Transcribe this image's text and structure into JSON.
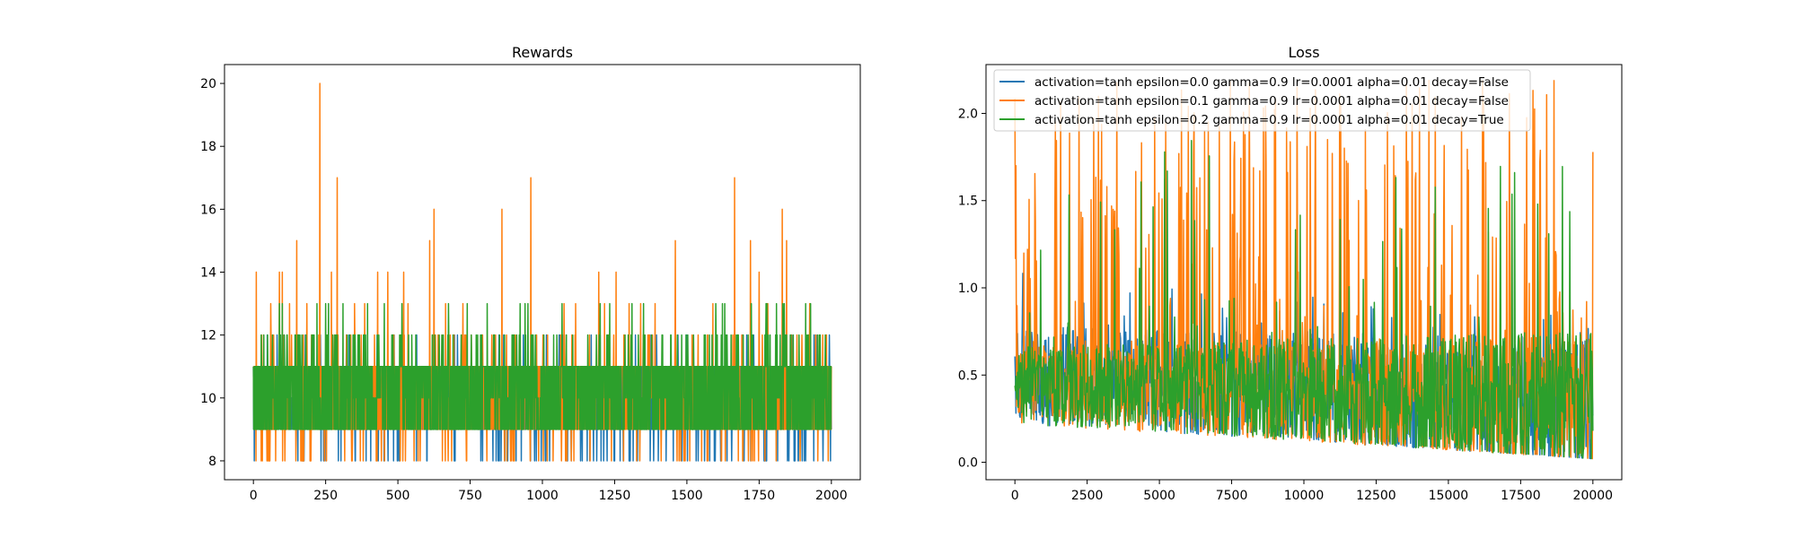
{
  "chart_data": [
    {
      "type": "line",
      "title": "Rewards",
      "xlabel": "",
      "ylabel": "",
      "xlim": [
        -100,
        2100
      ],
      "ylim": [
        7.4,
        20.6
      ],
      "x_ticks": [
        "0",
        "250",
        "500",
        "750",
        "1000",
        "1250",
        "1500",
        "1750",
        "2000"
      ],
      "y_ticks": [
        "8",
        "10",
        "12",
        "14",
        "16",
        "18",
        "20"
      ],
      "grid": false,
      "legend": null,
      "series": [
        {
          "color": "#1f77b4",
          "x_range": [
            0,
            2000
          ],
          "typical_range": [
            9,
            11
          ],
          "min": 8,
          "max": 12
        },
        {
          "color": "#ff7f0e",
          "x_range": [
            0,
            2000
          ],
          "typical_range": [
            9,
            11
          ],
          "min": 8,
          "max": 20,
          "peaks": [
            [
              10,
              14
            ],
            [
              60,
              13
            ],
            [
              90,
              14
            ],
            [
              100,
              14
            ],
            [
              125,
              13
            ],
            [
              150,
              15
            ],
            [
              185,
              13
            ],
            [
              230,
              20
            ],
            [
              270,
              14
            ],
            [
              290,
              17
            ],
            [
              350,
              13
            ],
            [
              385,
              13
            ],
            [
              430,
              14
            ],
            [
              465,
              14
            ],
            [
              520,
              14
            ],
            [
              535,
              13
            ],
            [
              610,
              15
            ],
            [
              625,
              16
            ],
            [
              665,
              13
            ],
            [
              725,
              13
            ],
            [
              860,
              16
            ],
            [
              960,
              17
            ],
            [
              1075,
              13
            ],
            [
              1115,
              13
            ],
            [
              1195,
              14
            ],
            [
              1215,
              13
            ],
            [
              1255,
              14
            ],
            [
              1300,
              13
            ],
            [
              1340,
              13
            ],
            [
              1390,
              13
            ],
            [
              1460,
              15
            ],
            [
              1590,
              13
            ],
            [
              1665,
              17
            ],
            [
              1720,
              15
            ],
            [
              1750,
              14
            ],
            [
              1780,
              13
            ],
            [
              1830,
              16
            ],
            [
              1845,
              15
            ],
            [
              1925,
              13
            ],
            [
              1970,
              12
            ]
          ]
        },
        {
          "color": "#2ca02c",
          "x_range": [
            0,
            2000
          ],
          "typical_range": [
            9,
            11
          ],
          "min": 9,
          "max": 13
        }
      ]
    },
    {
      "type": "line",
      "title": "Loss",
      "xlabel": "",
      "ylabel": "",
      "xlim": [
        -1000,
        21000
      ],
      "ylim": [
        -0.1,
        2.28
      ],
      "x_ticks": [
        "0",
        "2500",
        "5000",
        "7500",
        "10000",
        "12500",
        "15000",
        "17500",
        "20000"
      ],
      "y_ticks": [
        "0.0",
        "0.5",
        "1.0",
        "1.5",
        "2.0"
      ],
      "grid": false,
      "legend": "upper left",
      "series": [
        {
          "name": "activation=tanh epsilon=0.0 gamma=0.9 lr=0.0001 alpha=0.01 decay=False",
          "color": "#1f77b4",
          "x_range": [
            0,
            20000
          ],
          "band_start": [
            0.3,
            0.78
          ],
          "band_end": [
            0.02,
            0.72
          ],
          "max": 1.1
        },
        {
          "name": "activation=tanh epsilon=0.1 gamma=0.9 lr=0.0001 alpha=0.01 decay=False",
          "color": "#ff7f0e",
          "x_range": [
            0,
            20000
          ],
          "band_start": [
            0.3,
            0.7
          ],
          "band_end": [
            0.02,
            0.72
          ],
          "max": 2.2
        },
        {
          "name": "activation=tanh epsilon=0.2 gamma=0.9 lr=0.0001 alpha=0.01 decay=True",
          "color": "#2ca02c",
          "x_range": [
            0,
            20000
          ],
          "band_start": [
            0.3,
            0.66
          ],
          "band_end": [
            0.02,
            0.76
          ],
          "max": 1.9
        }
      ]
    }
  ]
}
